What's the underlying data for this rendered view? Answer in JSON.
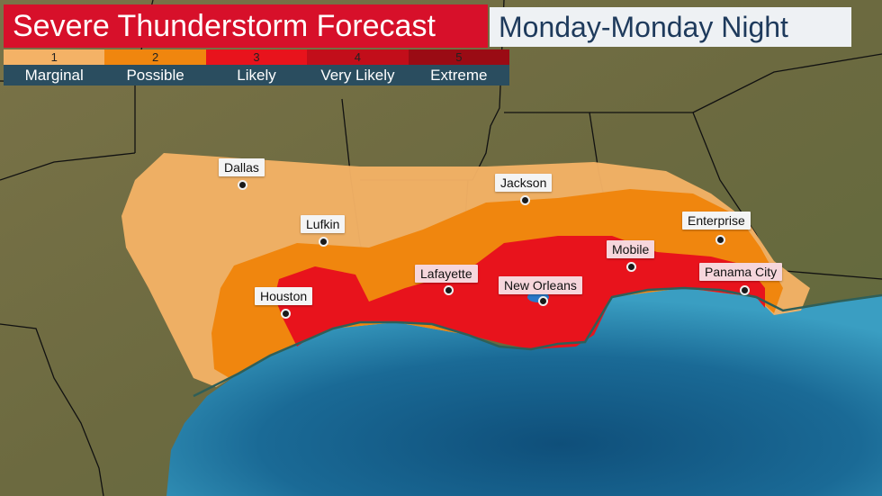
{
  "title": "Severe Thunderstorm Forecast",
  "subtitle": "Monday-Monday Night",
  "legend": [
    {
      "level": "1",
      "label": "Marginal",
      "color": "#f4b266"
    },
    {
      "level": "2",
      "label": "Possible",
      "color": "#f0860e"
    },
    {
      "level": "3",
      "label": "Likely",
      "color": "#e8131c"
    },
    {
      "level": "4",
      "label": "Very Likely",
      "color": "#c20e1a"
    },
    {
      "level": "5",
      "label": "Extreme",
      "color": "#9a0b14"
    }
  ],
  "cities": [
    {
      "name": "Dallas"
    },
    {
      "name": "Lufkin"
    },
    {
      "name": "Houston"
    },
    {
      "name": "Lafayette"
    },
    {
      "name": "Jackson"
    },
    {
      "name": "New Orleans"
    },
    {
      "name": "Mobile"
    },
    {
      "name": "Enterprise"
    },
    {
      "name": "Panama City"
    }
  ],
  "colors": {
    "land": "#716c46",
    "gulf": "#1d6e98",
    "title_bg": "#d7102a",
    "subtitle_bg": "#eef1f4"
  }
}
